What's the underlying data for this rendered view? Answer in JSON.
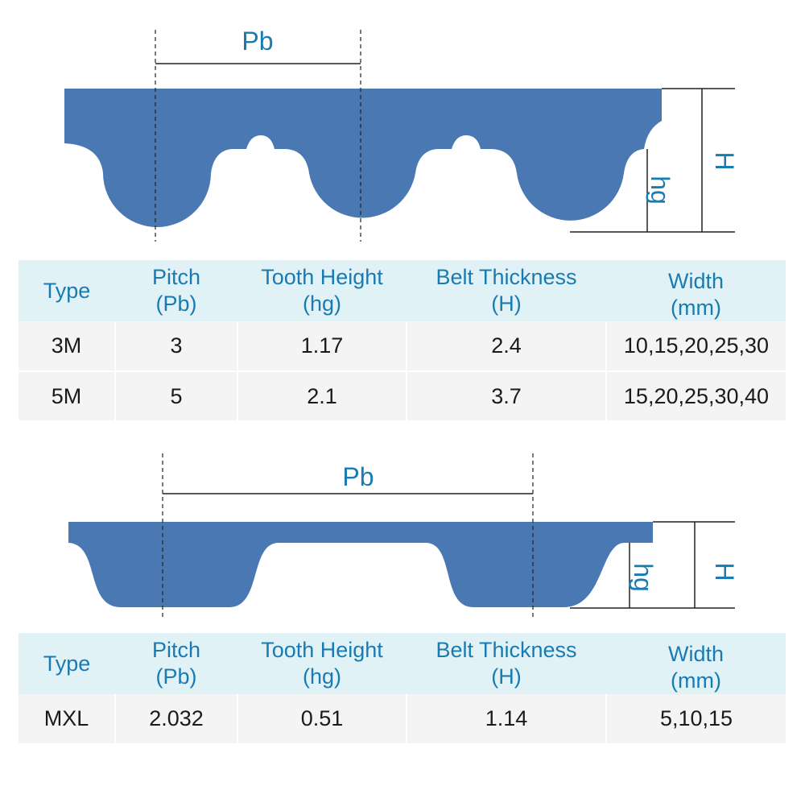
{
  "colors": {
    "belt": "#4978b3",
    "label_blue": "#1a7bb2",
    "header_bg": "#e1f2f6",
    "row_bg": "#f4f4f4"
  },
  "diagram_htd": {
    "pitch_label": "Pb",
    "tooth_height_label": "hg",
    "thickness_label": "H"
  },
  "table_htd": {
    "headers": [
      {
        "line1": "Type",
        "line2": ""
      },
      {
        "line1": "Pitch",
        "line2": "(Pb)"
      },
      {
        "line1": "Tooth Height",
        "line2": "(hg)"
      },
      {
        "line1": "Belt Thickness",
        "line2": "(H)"
      },
      {
        "line1": "Width",
        "line2": "(mm)"
      }
    ],
    "rows": [
      [
        "3M",
        "3",
        "1.17",
        "2.4",
        "10,15,20,25,30"
      ],
      [
        "5M",
        "5",
        "2.1",
        "3.7",
        "15,20,25,30,40"
      ]
    ]
  },
  "diagram_mxl": {
    "pitch_label": "Pb",
    "tooth_height_label": "hg",
    "thickness_label": "H"
  },
  "table_mxl": {
    "headers": [
      {
        "line1": "Type",
        "line2": ""
      },
      {
        "line1": "Pitch",
        "line2": "(Pb)"
      },
      {
        "line1": "Tooth Height",
        "line2": "(hg)"
      },
      {
        "line1": "Belt Thickness",
        "line2": "(H)"
      },
      {
        "line1": "Width",
        "line2": "(mm)"
      }
    ],
    "rows": [
      [
        "MXL",
        "2.032",
        "0.51",
        "1.14",
        "5,10,15"
      ]
    ]
  }
}
